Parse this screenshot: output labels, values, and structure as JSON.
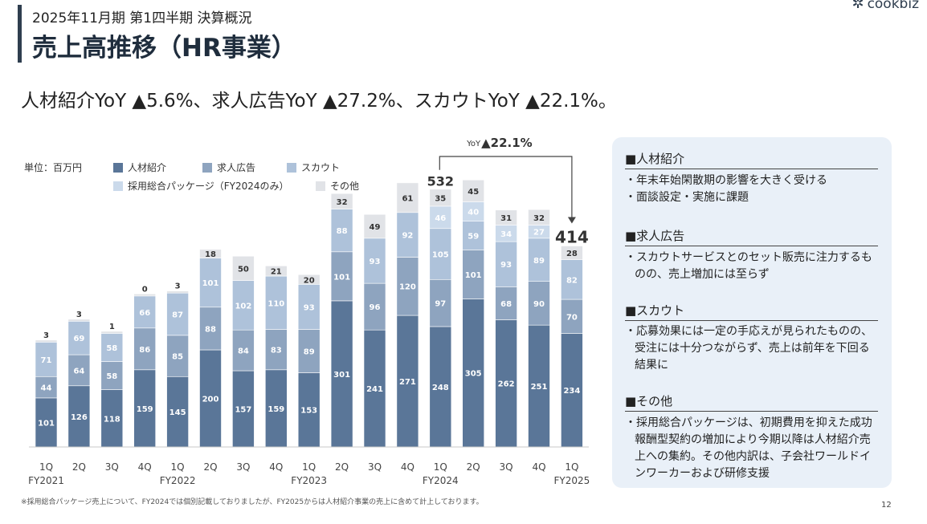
{
  "header": {
    "subtitle": "2025年11月期 第1四半期 決算概況",
    "title": "売上高推移（HR事業）",
    "logo_text": "cookbiz"
  },
  "headline": "人材紹介YoY ▲5.6%、求人広告YoY ▲27.2%、スカウトYoY ▲22.1%。",
  "chart_data": {
    "type": "bar",
    "stacked": true,
    "unit_label": "単位：百万円",
    "quarters": [
      "1Q",
      "2Q",
      "3Q",
      "4Q",
      "1Q",
      "2Q",
      "3Q",
      "4Q",
      "1Q",
      "2Q",
      "3Q",
      "4Q",
      "1Q",
      "2Q",
      "3Q",
      "4Q",
      "1Q"
    ],
    "fiscal_years": [
      {
        "label": "FY2021",
        "start": 0,
        "end": 3
      },
      {
        "label": "FY2022",
        "start": 4,
        "end": 7
      },
      {
        "label": "FY2023",
        "start": 8,
        "end": 11
      },
      {
        "label": "FY2024",
        "start": 12,
        "end": 15
      },
      {
        "label": "FY2025",
        "start": 16,
        "end": 16
      }
    ],
    "series": [
      {
        "name": "人材紹介",
        "color": "#5a7698",
        "label_color": "#ffffff",
        "values": [
          101,
          126,
          118,
          159,
          145,
          200,
          157,
          159,
          153,
          301,
          241,
          271,
          248,
          305,
          262,
          251,
          234
        ]
      },
      {
        "name": "求人広告",
        "color": "#8ea4bf",
        "label_color": "#ffffff",
        "values": [
          44,
          64,
          58,
          86,
          85,
          88,
          84,
          83,
          89,
          101,
          96,
          120,
          97,
          101,
          68,
          90,
          70
        ]
      },
      {
        "name": "スカウト",
        "color": "#aec2da",
        "label_color": "#ffffff",
        "values": [
          71,
          69,
          58,
          66,
          87,
          101,
          102,
          110,
          93,
          88,
          93,
          92,
          105,
          59,
          93,
          89,
          82
        ]
      },
      {
        "name": "採用総合パッケージ（FY2024のみ）",
        "color": "#cbdaeb",
        "label_color": "#ffffff",
        "values": [
          0,
          0,
          0,
          0,
          0,
          0,
          0,
          0,
          0,
          0,
          0,
          0,
          46,
          40,
          34,
          27,
          0
        ]
      },
      {
        "name": "その他",
        "color": "#e1e3e7",
        "label_color": "#333333",
        "values": [
          3,
          3,
          1,
          0,
          3,
          18,
          50,
          21,
          20,
          32,
          49,
          61,
          35,
          45,
          31,
          32,
          28
        ]
      }
    ],
    "value_labels": [
      [
        "101",
        "126",
        "118",
        "159",
        "145",
        "200",
        "157",
        "159",
        "153",
        "301",
        "241",
        "271",
        "248",
        "305",
        "262",
        "251",
        "234"
      ],
      [
        "44",
        "64",
        "58",
        "86",
        "85",
        "88",
        "84",
        "83",
        "89",
        "101",
        "96",
        "120",
        "97",
        "101",
        "68",
        "90",
        "70"
      ],
      [
        "71",
        "69",
        "58",
        "66",
        "87",
        "101",
        "102",
        "110",
        "93",
        "88",
        "93",
        "92",
        "105",
        "59",
        "93",
        "89",
        "82"
      ],
      [
        "",
        "",
        "",
        "",
        "",
        "",
        "",
        "",
        "",
        "",
        "",
        "",
        "46",
        "40",
        "34",
        "27",
        ""
      ],
      [
        "3",
        "3",
        "1",
        "0",
        "3",
        "18",
        "50",
        "21",
        "20",
        "32",
        "49",
        "61",
        "35",
        "45",
        "31",
        "32",
        "28"
      ]
    ],
    "totals": [
      {
        "index": 12,
        "label": "532"
      },
      {
        "index": 16,
        "label": "414"
      }
    ],
    "yoy_prefix": "YoY",
    "yoy_value": "▲22.1%",
    "y_range": [
      0,
      580
    ],
    "legend_placement": "top-left"
  },
  "side_panel": {
    "sections": [
      {
        "title": "■人材紹介",
        "bullets": [
          "・年末年始閑散期の影響を大きく受ける",
          "・面談設定・実施に課題"
        ]
      },
      {
        "title": "■求人広告",
        "bullets": [
          "・スカウトサービスとのセット販売に注力するものの、売上増加には至らず"
        ]
      },
      {
        "title": "■スカウト",
        "bullets": [
          "・応募効果には一定の手応えが見られたものの、受注には十分つながらず、売上は前年を下回る結果に"
        ]
      },
      {
        "title": "■その他",
        "bullets": [
          "・採用総合パッケージは、初期費用を抑えた成功報酬型契約の増加により今期以降は人材紹介売上への集約。その他内訳は、子会社ワールドインワーカーおよび研修支援"
        ]
      }
    ]
  },
  "footnote": "※採用総合パッケージ売上について、FY2024では個別記載しておりましたが、FY2025からは人材紹介事業の売上に含めて計上しております。",
  "page_number": "12"
}
